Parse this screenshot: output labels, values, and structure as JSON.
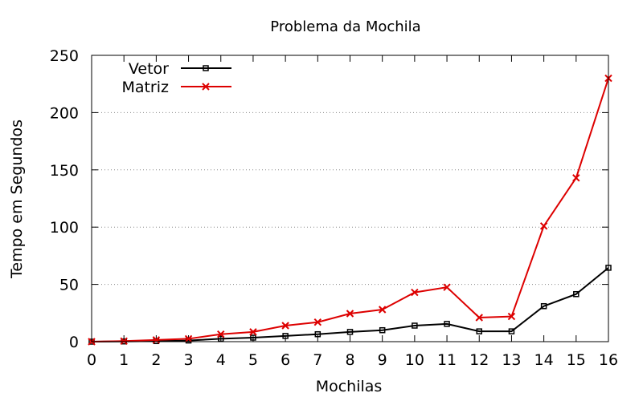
{
  "chart_data": {
    "type": "line",
    "title": "Problema da Mochila",
    "xlabel": "Mochilas",
    "ylabel": "Tempo em Segundos",
    "xlim": [
      0,
      16
    ],
    "ylim": [
      0,
      250
    ],
    "x_ticks": [
      0,
      1,
      2,
      3,
      4,
      5,
      6,
      7,
      8,
      9,
      10,
      11,
      12,
      13,
      14,
      15,
      16
    ],
    "y_ticks": [
      0,
      50,
      100,
      150,
      200,
      250
    ],
    "grid": "horizontal-dotted",
    "legend_position": "top-left",
    "x": [
      0,
      1,
      2,
      3,
      4,
      5,
      6,
      7,
      8,
      9,
      10,
      11,
      12,
      13,
      14,
      15,
      16
    ],
    "series": [
      {
        "name": "Vetor",
        "color": "#000000",
        "marker": "square",
        "values": [
          0,
          0.2,
          0.5,
          1,
          2.5,
          3.5,
          5,
          6.5,
          8.5,
          10,
          14,
          15.5,
          9,
          9,
          31,
          41.5,
          64.5
        ]
      },
      {
        "name": "Matriz",
        "color": "#dd0000",
        "marker": "x",
        "values": [
          0,
          0.5,
          1.5,
          2.5,
          6.5,
          8.5,
          14,
          17,
          24.5,
          28,
          43,
          47.5,
          21,
          22,
          101,
          143,
          230
        ]
      }
    ]
  }
}
